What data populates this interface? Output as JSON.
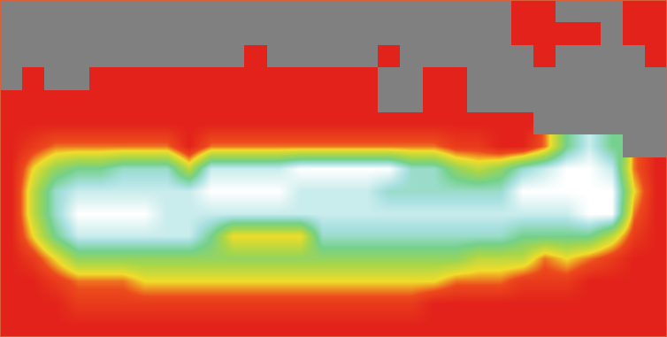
{
  "chart_data": {
    "type": "heatmap",
    "tick_labels": false,
    "zlim": [
      0,
      9
    ],
    "z": [
      [
        null,
        null,
        null,
        null,
        null,
        null,
        null,
        null,
        null,
        null,
        null,
        null,
        null,
        null,
        null,
        null,
        null,
        null,
        null,
        null,
        null,
        null,
        null,
        0,
        0,
        null,
        null,
        null,
        0,
        0
      ],
      [
        null,
        null,
        null,
        null,
        null,
        null,
        null,
        null,
        null,
        null,
        null,
        null,
        null,
        null,
        null,
        null,
        null,
        null,
        null,
        null,
        null,
        null,
        null,
        0,
        0,
        0,
        0,
        null,
        0,
        0
      ],
      [
        null,
        null,
        null,
        null,
        null,
        null,
        null,
        null,
        null,
        null,
        null,
        0,
        null,
        null,
        null,
        null,
        null,
        0,
        null,
        null,
        null,
        null,
        null,
        null,
        0,
        null,
        null,
        null,
        null,
        0
      ],
      [
        null,
        0,
        null,
        null,
        0,
        0,
        0,
        0,
        0,
        0,
        0,
        0,
        0,
        0,
        0,
        0,
        0,
        null,
        null,
        0,
        0,
        null,
        null,
        null,
        null,
        null,
        null,
        null,
        null,
        null
      ],
      [
        0,
        0,
        0,
        0,
        0,
        0,
        0,
        0,
        0,
        0,
        0,
        0,
        0,
        0,
        0,
        0,
        0,
        null,
        null,
        0,
        0,
        null,
        null,
        null,
        null,
        null,
        null,
        null,
        null,
        null
      ],
      [
        0,
        0,
        0,
        0,
        0,
        0,
        0,
        0,
        0,
        0,
        0,
        0,
        0,
        0,
        0,
        0,
        0,
        0,
        0,
        0,
        0,
        0,
        0,
        0,
        null,
        null,
        null,
        null,
        null,
        null
      ],
      [
        0,
        1,
        2,
        2,
        2,
        2,
        2,
        2,
        0,
        2,
        2,
        2,
        2,
        2,
        2,
        2,
        2,
        2,
        2,
        2,
        1,
        1,
        0,
        0,
        2,
        6,
        8,
        6,
        null,
        null
      ],
      [
        0,
        3,
        5,
        6,
        6,
        7,
        7,
        7,
        4,
        8,
        8,
        8,
        8,
        9,
        9,
        9,
        9,
        9,
        7,
        7,
        5,
        4,
        5,
        7,
        8,
        9,
        9,
        8,
        2,
        0
      ],
      [
        0,
        4,
        7,
        8,
        8,
        8,
        8,
        8,
        8,
        9,
        9,
        9,
        9,
        8,
        8,
        8,
        8,
        7,
        7,
        7,
        7,
        7,
        7,
        9,
        9,
        9,
        9,
        9,
        3,
        0
      ],
      [
        0,
        4,
        7,
        9,
        9,
        9,
        9,
        8,
        8,
        8,
        8,
        8,
        8,
        8,
        8,
        8,
        8,
        8,
        8,
        8,
        8,
        8,
        8,
        8,
        8,
        8,
        9,
        9,
        2,
        0
      ],
      [
        0,
        3,
        6,
        8,
        8,
        8,
        8,
        8,
        8,
        6,
        3,
        3,
        3,
        3,
        7,
        7,
        7,
        7,
        7,
        7,
        7,
        7,
        7,
        6,
        6,
        6,
        6,
        4,
        1,
        0
      ],
      [
        0,
        1,
        3,
        5,
        5,
        5,
        5,
        5,
        5,
        5,
        5,
        5,
        5,
        5,
        5,
        5,
        5,
        5,
        5,
        5,
        5,
        4,
        4,
        4,
        2,
        3,
        2,
        1,
        0,
        0
      ],
      [
        0,
        0,
        1,
        2,
        2,
        2,
        3,
        3,
        3,
        3,
        3,
        3,
        3,
        3,
        3,
        3,
        3,
        3,
        3,
        3,
        2,
        2,
        2,
        1,
        1,
        1,
        0,
        0,
        0,
        0
      ],
      [
        0,
        0,
        0,
        1,
        1,
        1,
        1,
        1,
        1,
        1,
        1,
        1,
        1,
        1,
        1,
        1,
        1,
        1,
        1,
        0,
        0,
        0,
        0,
        0,
        0,
        0,
        0,
        0,
        0,
        0
      ],
      [
        0,
        0,
        0,
        0,
        0,
        0,
        0,
        0,
        0,
        0,
        0,
        0,
        0,
        0,
        0,
        0,
        0,
        0,
        0,
        0,
        0,
        0,
        0,
        0,
        0,
        0,
        0,
        0,
        0,
        0
      ]
    ]
  }
}
